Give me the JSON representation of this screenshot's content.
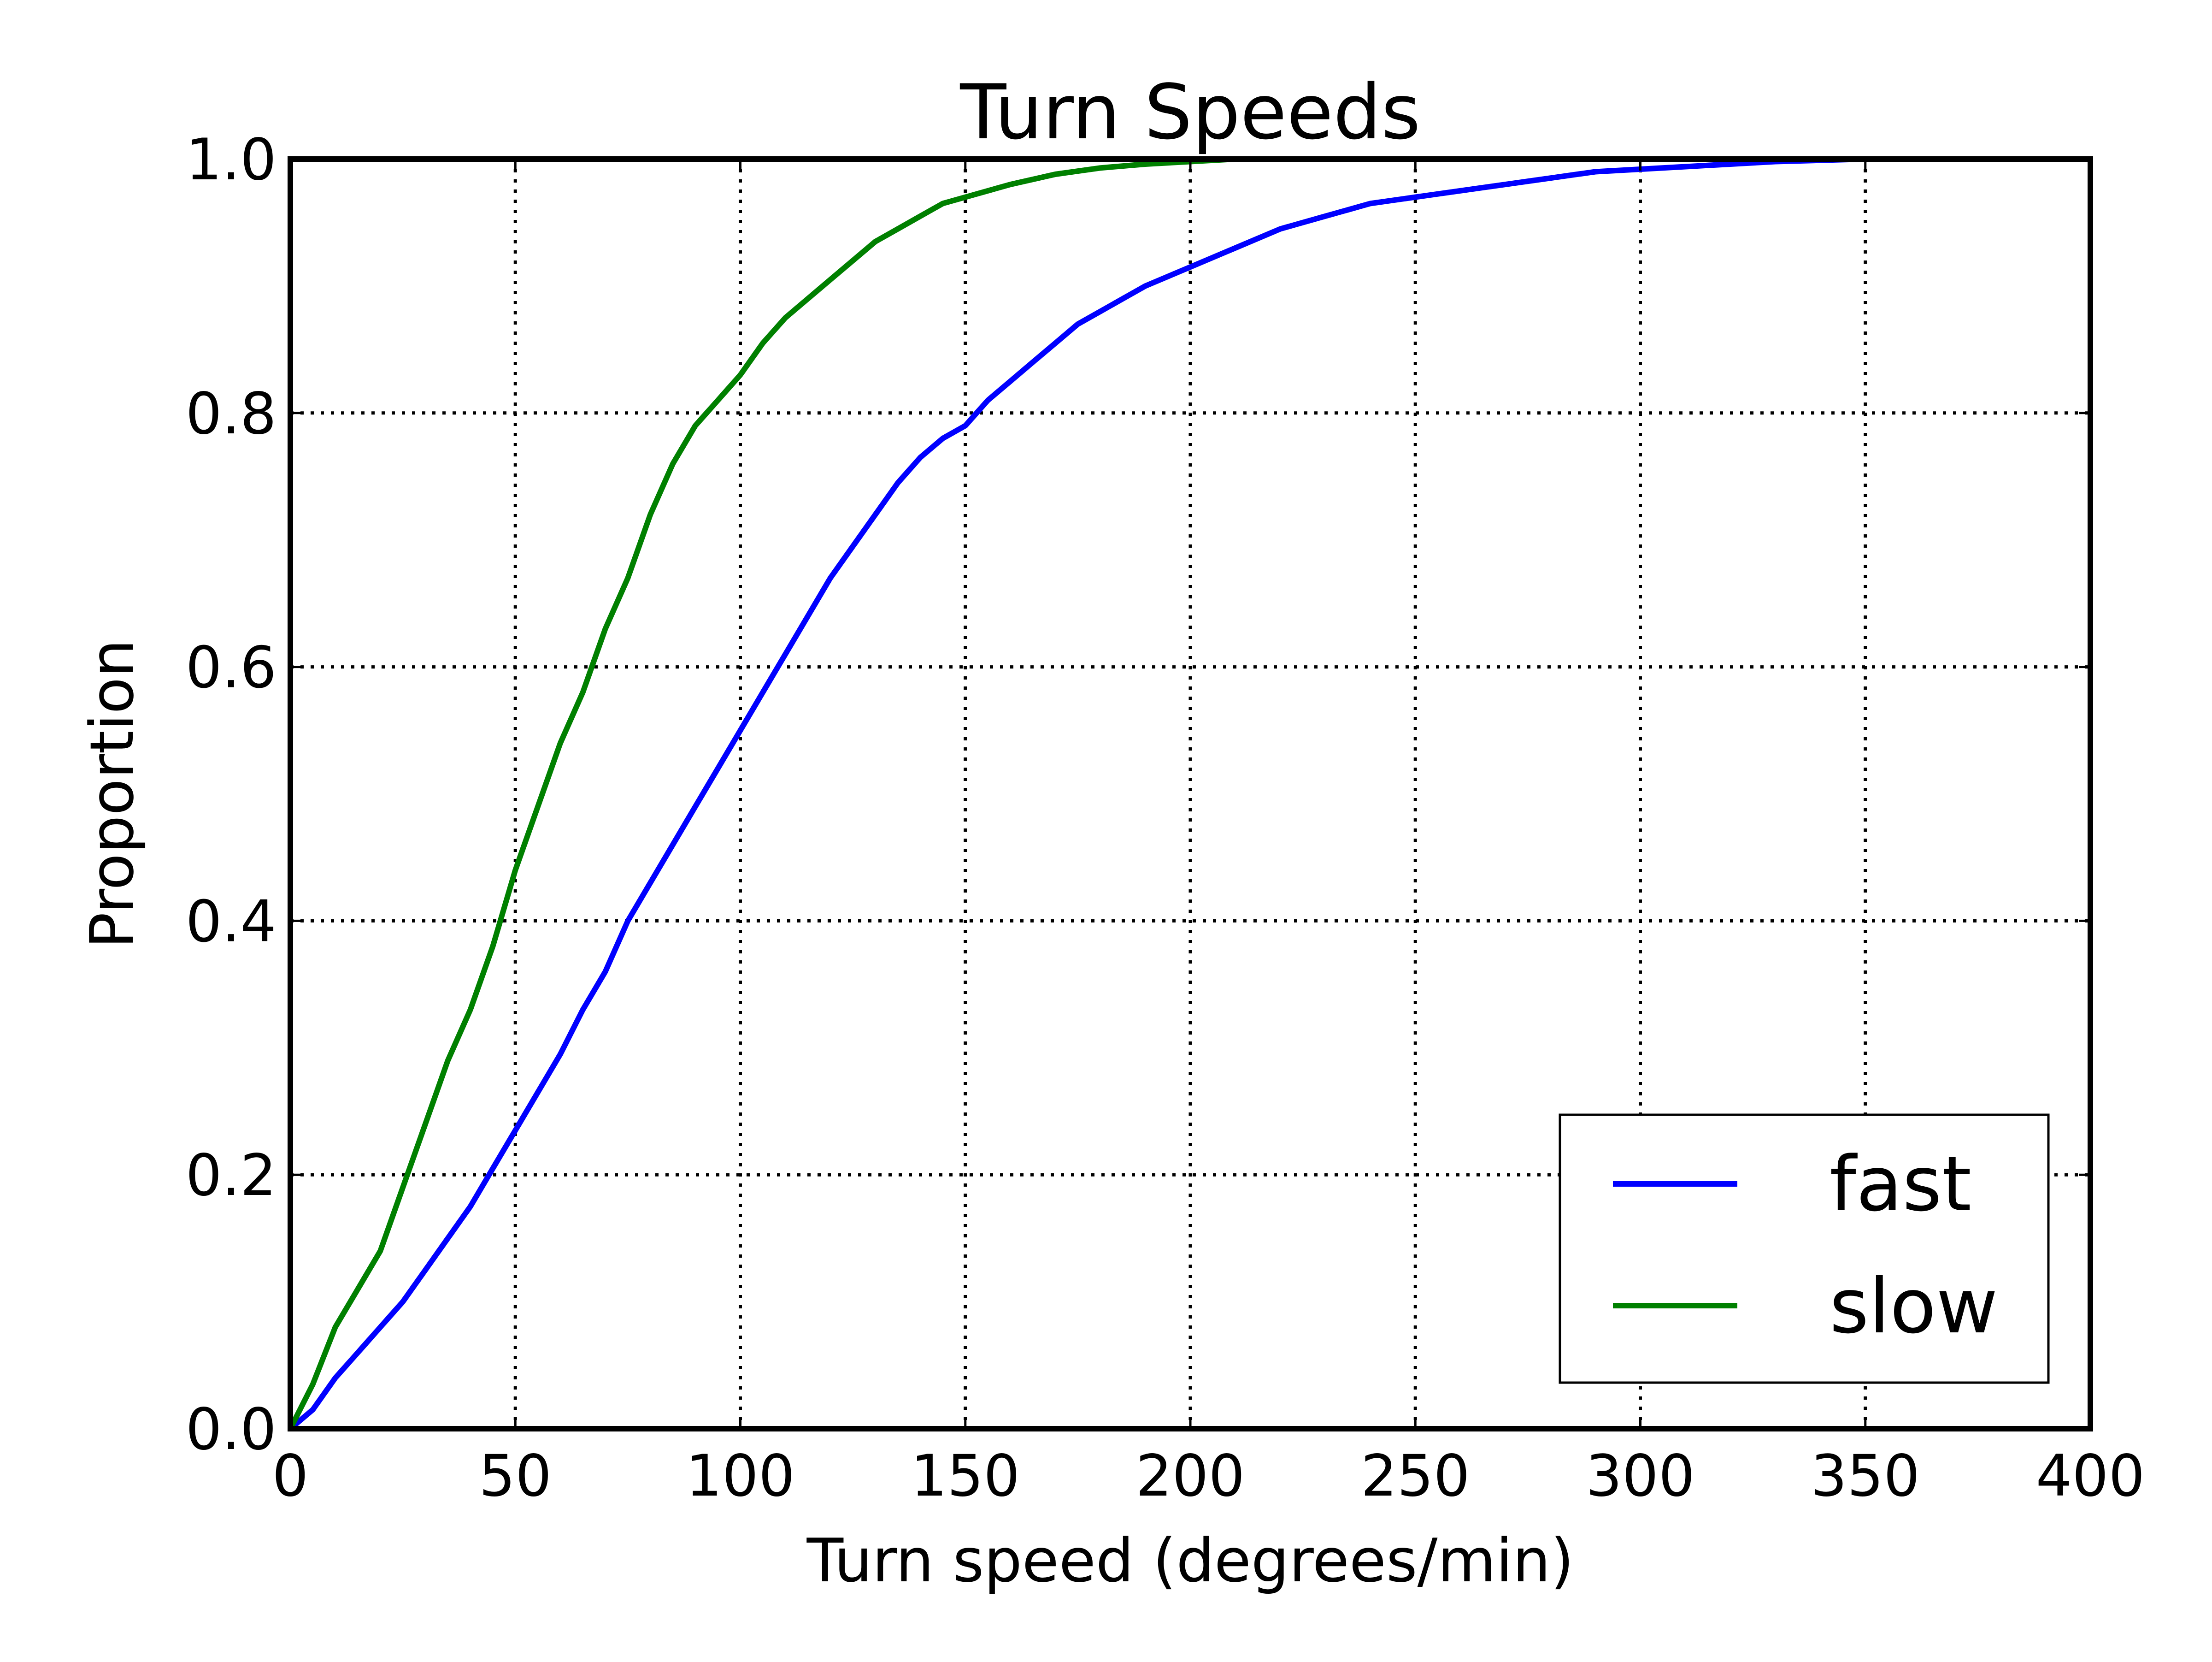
{
  "chart_data": {
    "type": "line",
    "title": "Turn Speeds",
    "xlabel": "Turn speed (degrees/min)",
    "ylabel": "Proportion",
    "xlim": [
      0,
      400
    ],
    "ylim": [
      0.0,
      1.0
    ],
    "x_ticks": [
      "0",
      "50",
      "100",
      "150",
      "200",
      "250",
      "300",
      "350",
      "400"
    ],
    "y_ticks": [
      "0.0",
      "0.2",
      "0.4",
      "0.6",
      "0.8",
      "1.0"
    ],
    "grid": true,
    "grid_style": "dotted",
    "legend_position": "lower-right",
    "series": [
      {
        "name": "fast",
        "color": "#0000ff",
        "points": [
          [
            0,
            0.0
          ],
          [
            5,
            0.015
          ],
          [
            10,
            0.04
          ],
          [
            15,
            0.06
          ],
          [
            20,
            0.08
          ],
          [
            25,
            0.1
          ],
          [
            30,
            0.125
          ],
          [
            35,
            0.15
          ],
          [
            40,
            0.175
          ],
          [
            45,
            0.205
          ],
          [
            50,
            0.235
          ],
          [
            55,
            0.265
          ],
          [
            60,
            0.295
          ],
          [
            65,
            0.33
          ],
          [
            70,
            0.36
          ],
          [
            75,
            0.4
          ],
          [
            80,
            0.43
          ],
          [
            85,
            0.46
          ],
          [
            90,
            0.49
          ],
          [
            95,
            0.52
          ],
          [
            100,
            0.55
          ],
          [
            105,
            0.58
          ],
          [
            110,
            0.61
          ],
          [
            115,
            0.64
          ],
          [
            120,
            0.67
          ],
          [
            125,
            0.695
          ],
          [
            130,
            0.72
          ],
          [
            135,
            0.745
          ],
          [
            140,
            0.765
          ],
          [
            145,
            0.78
          ],
          [
            150,
            0.79
          ],
          [
            155,
            0.81
          ],
          [
            160,
            0.825
          ],
          [
            165,
            0.84
          ],
          [
            170,
            0.855
          ],
          [
            175,
            0.87
          ],
          [
            180,
            0.88
          ],
          [
            185,
            0.89
          ],
          [
            190,
            0.9
          ],
          [
            200,
            0.915
          ],
          [
            210,
            0.93
          ],
          [
            220,
            0.945
          ],
          [
            230,
            0.955
          ],
          [
            240,
            0.965
          ],
          [
            250,
            0.97
          ],
          [
            260,
            0.975
          ],
          [
            270,
            0.98
          ],
          [
            280,
            0.985
          ],
          [
            290,
            0.99
          ],
          [
            300,
            0.992
          ],
          [
            310,
            0.994
          ],
          [
            320,
            0.996
          ],
          [
            330,
            0.998
          ],
          [
            340,
            0.999
          ],
          [
            350,
            1.0
          ]
        ]
      },
      {
        "name": "slow",
        "color": "#008000",
        "points": [
          [
            0,
            0.0
          ],
          [
            5,
            0.035
          ],
          [
            10,
            0.08
          ],
          [
            15,
            0.11
          ],
          [
            20,
            0.14
          ],
          [
            25,
            0.19
          ],
          [
            30,
            0.24
          ],
          [
            35,
            0.29
          ],
          [
            40,
            0.33
          ],
          [
            45,
            0.38
          ],
          [
            50,
            0.44
          ],
          [
            55,
            0.49
          ],
          [
            60,
            0.54
          ],
          [
            65,
            0.58
          ],
          [
            70,
            0.63
          ],
          [
            75,
            0.67
          ],
          [
            80,
            0.72
          ],
          [
            85,
            0.76
          ],
          [
            90,
            0.79
          ],
          [
            95,
            0.81
          ],
          [
            100,
            0.83
          ],
          [
            105,
            0.855
          ],
          [
            110,
            0.875
          ],
          [
            115,
            0.89
          ],
          [
            120,
            0.905
          ],
          [
            125,
            0.92
          ],
          [
            130,
            0.935
          ],
          [
            135,
            0.945
          ],
          [
            140,
            0.955
          ],
          [
            145,
            0.965
          ],
          [
            150,
            0.97
          ],
          [
            160,
            0.98
          ],
          [
            170,
            0.988
          ],
          [
            180,
            0.993
          ],
          [
            190,
            0.996
          ],
          [
            200,
            0.998
          ],
          [
            210,
            1.0
          ],
          [
            220,
            1.0
          ]
        ]
      }
    ]
  }
}
